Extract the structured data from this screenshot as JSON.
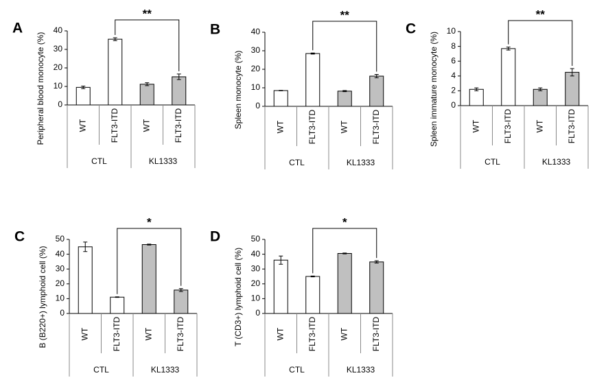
{
  "chart_data": [
    {
      "type": "bar",
      "panel": "A",
      "ylabel": "Peripheral blood monocyte (%)",
      "categories": [
        "WT",
        "FLT3-ITD",
        "WT",
        "FLT3-ITD"
      ],
      "group_labels": [
        "CTL",
        "KL1333"
      ],
      "values": [
        9.5,
        35.5,
        11.2,
        15.2
      ],
      "errors": [
        0.7,
        0.8,
        0.8,
        1.5
      ],
      "colors": [
        "#ffffff",
        "#ffffff",
        "#c0c0c0",
        "#c0c0c0"
      ],
      "ylim": [
        0,
        40
      ],
      "yticks": [
        0,
        10,
        20,
        30,
        40
      ],
      "annotation": "**"
    },
    {
      "type": "bar",
      "panel": "B",
      "ylabel": "Spleen monocyte (%)",
      "categories": [
        "WT",
        "FLT3-ITD",
        "WT",
        "FLT3-ITD"
      ],
      "group_labels": [
        "CTL",
        "KL1333"
      ],
      "values": [
        8.5,
        28.5,
        8.2,
        16.3
      ],
      "errors": [
        0.1,
        0.3,
        0.3,
        0.9
      ],
      "colors": [
        "#ffffff",
        "#ffffff",
        "#c0c0c0",
        "#c0c0c0"
      ],
      "ylim": [
        0,
        40
      ],
      "yticks": [
        0,
        10,
        20,
        30,
        40
      ],
      "annotation": "**"
    },
    {
      "type": "bar",
      "panel": "C",
      "ylabel": "Spleen immature monocyte (%)",
      "categories": [
        "WT",
        "FLT3-ITD",
        "WT",
        "FLT3-ITD"
      ],
      "group_labels": [
        "CTL",
        "KL1333"
      ],
      "values": [
        2.2,
        7.7,
        2.2,
        4.5
      ],
      "errors": [
        0.2,
        0.2,
        0.2,
        0.5
      ],
      "colors": [
        "#ffffff",
        "#ffffff",
        "#c0c0c0",
        "#c0c0c0"
      ],
      "ylim": [
        0,
        10
      ],
      "yticks": [
        0,
        2,
        4,
        6,
        8,
        10
      ],
      "annotation": "**"
    },
    {
      "type": "bar",
      "panel": "C",
      "ylabel": "B (B220+) lymphoid cell (%)",
      "categories": [
        "WT",
        "FLT3-ITD",
        "WT",
        "FLT3-ITD"
      ],
      "group_labels": [
        "CTL",
        "KL1333"
      ],
      "values": [
        45,
        11,
        46.5,
        15.8
      ],
      "errors": [
        3.2,
        0.2,
        0.3,
        1.0
      ],
      "colors": [
        "#ffffff",
        "#ffffff",
        "#c0c0c0",
        "#c0c0c0"
      ],
      "ylim": [
        0,
        50
      ],
      "yticks": [
        0,
        10,
        20,
        30,
        40,
        50
      ],
      "annotation": "*"
    },
    {
      "type": "bar",
      "panel": "D",
      "ylabel": "T (CD3+) lymphoid cell (%)",
      "categories": [
        "WT",
        "FLT3-ITD",
        "WT",
        "FLT3-ITD"
      ],
      "group_labels": [
        "CTL",
        "KL1333"
      ],
      "values": [
        36,
        25,
        40.5,
        34.8
      ],
      "errors": [
        2.8,
        0.3,
        0.3,
        0.8
      ],
      "colors": [
        "#ffffff",
        "#ffffff",
        "#c0c0c0",
        "#c0c0c0"
      ],
      "ylim": [
        0,
        50
      ],
      "yticks": [
        0,
        10,
        20,
        30,
        40,
        50
      ],
      "annotation": "*"
    }
  ]
}
